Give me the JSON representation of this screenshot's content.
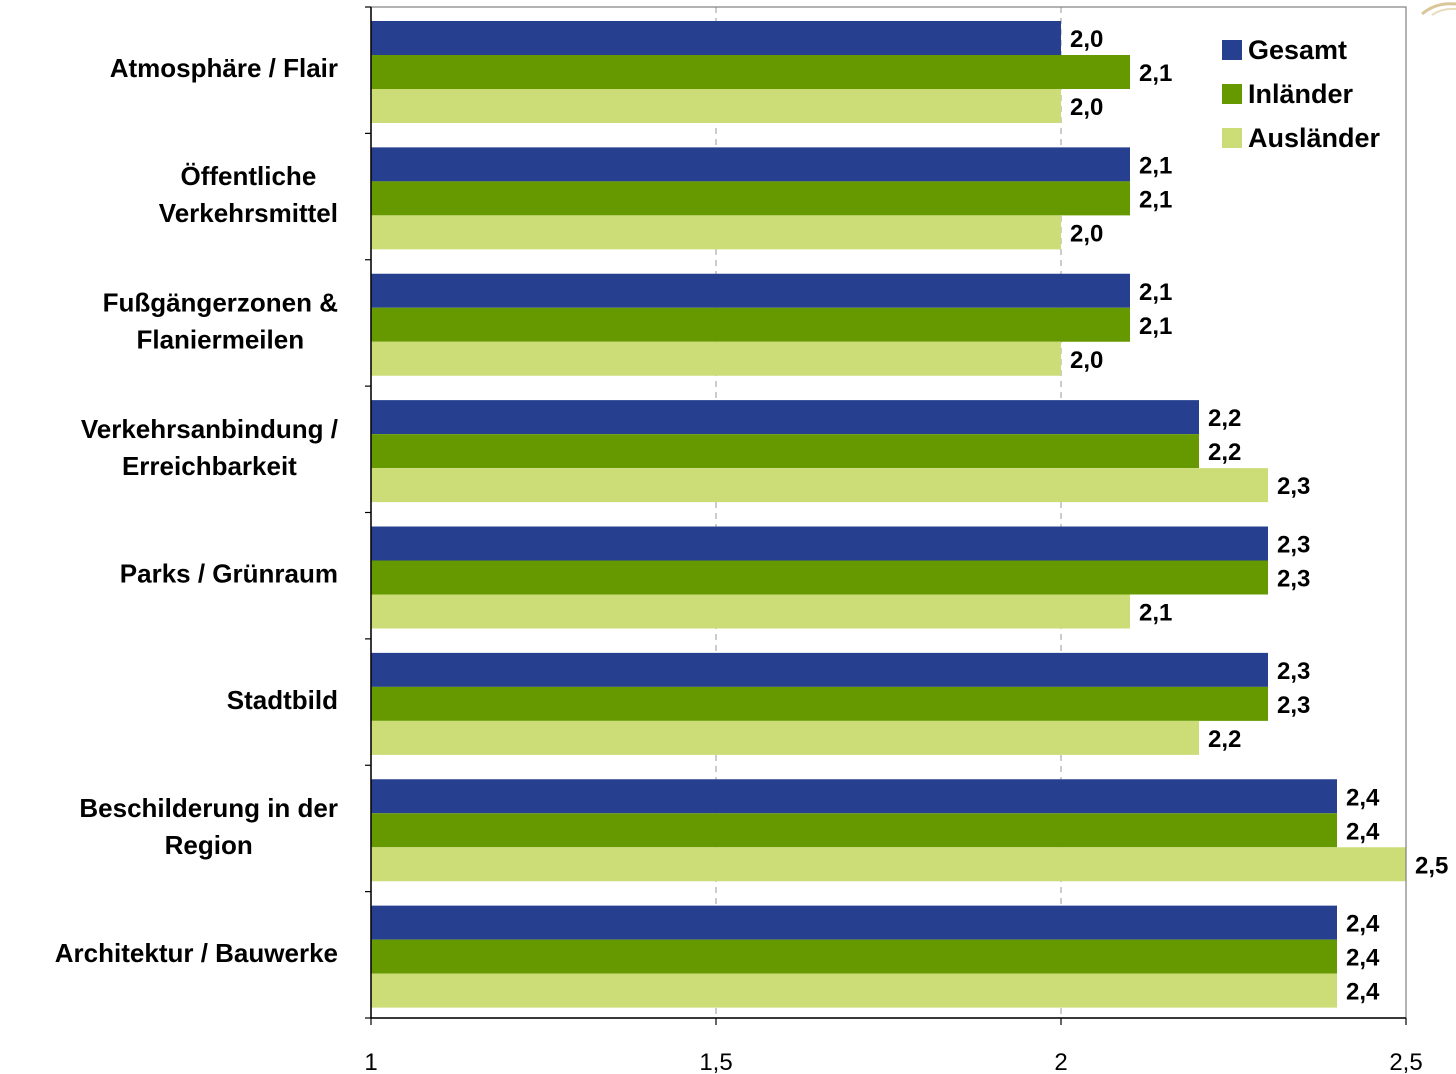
{
  "chart_data": {
    "type": "bar",
    "orientation": "horizontal",
    "title": "",
    "xlabel": "",
    "ylabel": "",
    "xlim": [
      1,
      2.5
    ],
    "x_ticks": [
      {
        "value": 1,
        "label": "1"
      },
      {
        "value": 1.5,
        "label": "1,5"
      },
      {
        "value": 2,
        "label": "2"
      },
      {
        "value": 2.5,
        "label": "2,5"
      }
    ],
    "grid": "vertical dashed",
    "legend": "top-right",
    "categories": [
      [
        "Atmosphäre / Flair"
      ],
      [
        "Öffentliche",
        "Verkehrsmittel"
      ],
      [
        "Fußgängerzonen &",
        "Flaniermeilen"
      ],
      [
        "Verkehrsanbindung /",
        "Erreichbarkeit"
      ],
      [
        "Parks / Grünraum"
      ],
      [
        "Stadtbild"
      ],
      [
        "Beschilderung in der",
        "Region"
      ],
      [
        "Architektur / Bauwerke"
      ]
    ],
    "series": [
      {
        "name": "Gesamt",
        "color": "#263F8E",
        "values": [
          2.0,
          2.1,
          2.1,
          2.2,
          2.3,
          2.3,
          2.4,
          2.4
        ],
        "labels": [
          "2,0",
          "2,1",
          "2,1",
          "2,2",
          "2,3",
          "2,3",
          "2,4",
          "2,4"
        ]
      },
      {
        "name": "Inländer",
        "color": "#669900",
        "values": [
          2.1,
          2.1,
          2.1,
          2.2,
          2.3,
          2.3,
          2.4,
          2.4
        ],
        "labels": [
          "2,1",
          "2,1",
          "2,1",
          "2,2",
          "2,3",
          "2,3",
          "2,4",
          "2,4"
        ]
      },
      {
        "name": "Ausländer",
        "color": "#CCDD77",
        "values": [
          2.0,
          2.0,
          2.0,
          2.3,
          2.1,
          2.2,
          2.5,
          2.4
        ],
        "labels": [
          "2,0",
          "2,0",
          "2,0",
          "2,3",
          "2,1",
          "2,2",
          "2,5",
          "2,4"
        ]
      }
    ]
  }
}
